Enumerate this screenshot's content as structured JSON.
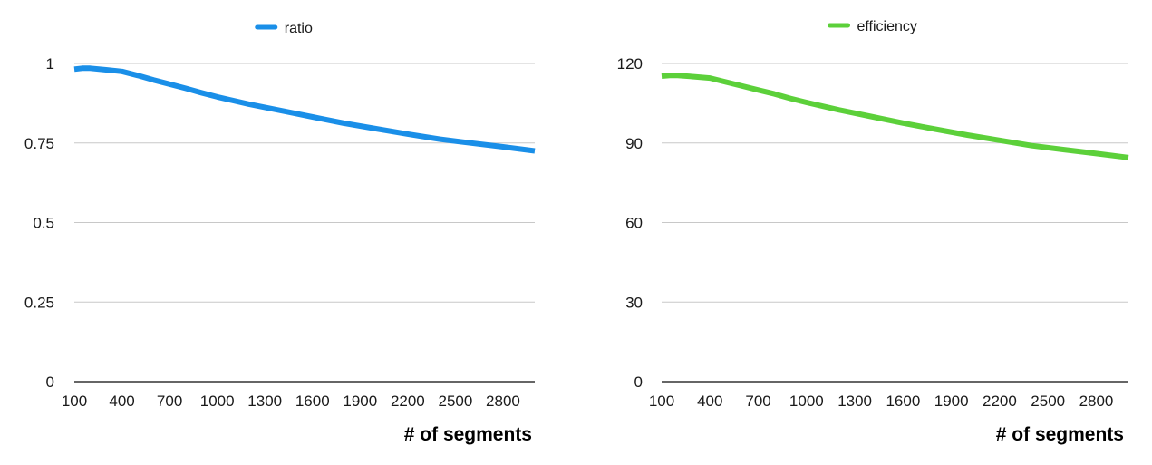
{
  "chart_data": [
    {
      "type": "line",
      "title": "",
      "xlabel": "# of segments",
      "ylabel": "",
      "xlim": [
        100,
        3000
      ],
      "ylim": [
        0,
        1
      ],
      "x_ticks": [
        100,
        400,
        700,
        1000,
        1300,
        1600,
        1900,
        2200,
        2500,
        2800
      ],
      "x_tick_labels": [
        "100",
        "400",
        "700",
        "1000",
        "1300",
        "1600",
        "1900",
        "2200",
        "2500",
        "2800"
      ],
      "y_ticks": [
        0,
        0.25,
        0.5,
        0.75,
        1
      ],
      "y_tick_labels": [
        "0",
        "0.25",
        "0.5",
        "0.75",
        "1"
      ],
      "grid": true,
      "legend_position": "top-center",
      "series": [
        {
          "name": "ratio",
          "color": "#1a8fe8",
          "x": [
            100,
            150,
            200,
            300,
            400,
            500,
            600,
            700,
            800,
            900,
            1000,
            1200,
            1400,
            1600,
            1800,
            2000,
            2200,
            2400,
            2600,
            2800,
            3000
          ],
          "y": [
            0.982,
            0.985,
            0.985,
            0.98,
            0.975,
            0.962,
            0.948,
            0.935,
            0.922,
            0.908,
            0.895,
            0.872,
            0.852,
            0.832,
            0.812,
            0.795,
            0.778,
            0.762,
            0.75,
            0.738,
            0.725
          ]
        }
      ]
    },
    {
      "type": "line",
      "title": "",
      "xlabel": "# of segments",
      "ylabel": "",
      "xlim": [
        100,
        3000
      ],
      "ylim": [
        0,
        120
      ],
      "x_ticks": [
        100,
        400,
        700,
        1000,
        1300,
        1600,
        1900,
        2200,
        2500,
        2800
      ],
      "x_tick_labels": [
        "100",
        "400",
        "700",
        "1000",
        "1300",
        "1600",
        "1900",
        "2200",
        "2500",
        "2800"
      ],
      "y_ticks": [
        0,
        30,
        60,
        90,
        120
      ],
      "y_tick_labels": [
        "0",
        "30",
        "60",
        "90",
        "120"
      ],
      "grid": true,
      "legend_position": "top-center",
      "series": [
        {
          "name": "efficiency",
          "color": "#5cd03a",
          "x": [
            100,
            150,
            200,
            300,
            400,
            500,
            600,
            700,
            800,
            900,
            1000,
            1200,
            1400,
            1600,
            1800,
            2000,
            2200,
            2400,
            2600,
            2800,
            3000
          ],
          "y": [
            115.2,
            115.5,
            115.5,
            115,
            114.5,
            113,
            111.5,
            110,
            108.5,
            106.8,
            105.3,
            102.5,
            100,
            97.5,
            95.2,
            93,
            91,
            89,
            87.5,
            86,
            84.5
          ]
        }
      ]
    }
  ]
}
